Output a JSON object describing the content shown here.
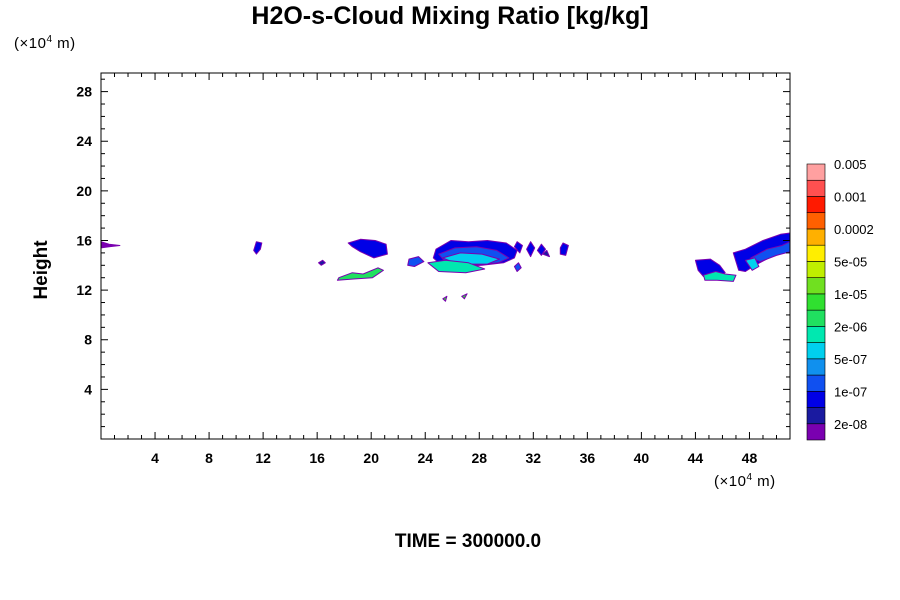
{
  "chart_data": {
    "type": "heatmap",
    "title": "H2O-s-Cloud Mixing Ratio [kg/kg]",
    "xlabel": "",
    "ylabel": "Height",
    "x_unit": "(×10",
    "x_unit_exp": "4",
    "x_unit_tail": " m)",
    "y_unit": "(×10",
    "y_unit_exp": "4",
    "y_unit_tail": " m)",
    "xlim": [
      0,
      51
    ],
    "ylim": [
      0,
      29.5
    ],
    "x_ticks": [
      "4",
      "8",
      "12",
      "16",
      "20",
      "24",
      "28",
      "32",
      "36",
      "40",
      "44",
      "48"
    ],
    "x_tick_values": [
      4,
      8,
      12,
      16,
      20,
      24,
      28,
      32,
      36,
      40,
      44,
      48
    ],
    "y_ticks": [
      "4",
      "8",
      "12",
      "16",
      "20",
      "24",
      "28"
    ],
    "y_tick_values": [
      4,
      8,
      12,
      16,
      20,
      24,
      28
    ],
    "grid": false,
    "legend_position": "right",
    "colorbar": {
      "colors": [
        "#7a00b0",
        "#1a1aa0",
        "#0000e6",
        "#1050f0",
        "#1090ee",
        "#00d0ee",
        "#00e8b0",
        "#20e060",
        "#30e030",
        "#70e020",
        "#c0ee00",
        "#ffee00",
        "#ffb000",
        "#ff6000",
        "#ff1a00",
        "#ff5050",
        "#ffa0a0"
      ],
      "labels": [
        "2e-08",
        "1e-07",
        "5e-07",
        "2e-06",
        "1e-05",
        "5e-05",
        "0.0002",
        "0.001",
        "0.005"
      ]
    },
    "cloud_regions": [
      {
        "x": [
          0.0,
          0.0,
          0.6,
          1.4,
          0.6
        ],
        "y": [
          15.4,
          15.9,
          15.7,
          15.6,
          15.5
        ],
        "level": 0
      },
      {
        "x": [
          11.3,
          11.5,
          11.9,
          11.8,
          11.5
        ],
        "y": [
          15.2,
          15.9,
          15.8,
          15.3,
          14.9
        ],
        "level": 2
      },
      {
        "x": [
          18.3,
          19.2,
          20.3,
          21.1,
          21.2,
          20.2,
          19.2,
          18.6
        ],
        "y": [
          15.8,
          16.1,
          16.0,
          15.7,
          14.9,
          14.6,
          15.1,
          15.5
        ],
        "level": 2
      },
      {
        "x": [
          16.1,
          16.4,
          16.6,
          16.3
        ],
        "y": [
          14.2,
          14.4,
          14.2,
          14.0
        ],
        "level": 1
      },
      {
        "x": [
          17.6,
          18.6,
          19.4,
          20.5,
          20.9,
          20.1,
          18.7,
          17.5
        ],
        "y": [
          13.0,
          13.4,
          13.3,
          13.8,
          13.6,
          13.0,
          12.9,
          12.8
        ],
        "level": 7
      },
      {
        "x": [
          22.8,
          23.5,
          23.9,
          23.2,
          22.7
        ],
        "y": [
          14.5,
          14.7,
          14.3,
          13.9,
          14.0
        ],
        "level": 3
      },
      {
        "x": [
          24.8,
          25.9,
          27.2,
          28.6,
          30.0,
          30.8,
          30.6,
          29.8,
          28.2,
          26.4,
          25.2,
          24.6
        ],
        "y": [
          15.3,
          16.0,
          15.9,
          16.0,
          15.8,
          15.2,
          14.6,
          14.2,
          14.0,
          13.9,
          14.0,
          14.6
        ],
        "level": 2
      },
      {
        "x": [
          25.0,
          26.2,
          27.8,
          29.3,
          30.2,
          29.4,
          27.6,
          25.6
        ],
        "y": [
          14.9,
          15.4,
          15.5,
          15.2,
          14.6,
          14.2,
          14.0,
          14.1
        ],
        "level": 3
      },
      {
        "x": [
          25.3,
          26.6,
          28.2,
          29.5,
          28.6,
          26.4
        ],
        "y": [
          14.6,
          15.0,
          14.9,
          14.5,
          14.1,
          14.1
        ],
        "level": 5
      },
      {
        "x": [
          24.2,
          25.5,
          27.2,
          28.4,
          27.0,
          25.0
        ],
        "y": [
          14.2,
          14.4,
          14.2,
          13.7,
          13.4,
          13.5
        ],
        "level": 6
      },
      {
        "x": [
          30.6,
          30.8,
          31.2,
          31.0
        ],
        "y": [
          15.5,
          15.9,
          15.6,
          15.0
        ],
        "level": 2
      },
      {
        "x": [
          31.5,
          31.8,
          32.1,
          31.8
        ],
        "y": [
          15.3,
          15.9,
          15.4,
          14.7
        ],
        "level": 2
      },
      {
        "x": [
          32.3,
          32.6,
          32.9,
          32.6
        ],
        "y": [
          15.2,
          15.7,
          15.3,
          14.8
        ],
        "level": 2
      },
      {
        "x": [
          30.6,
          30.9,
          31.1,
          30.8
        ],
        "y": [
          13.9,
          14.2,
          13.8,
          13.5
        ],
        "level": 3
      },
      {
        "x": [
          34.0,
          34.2,
          34.6,
          34.4,
          34.0
        ],
        "y": [
          15.4,
          15.8,
          15.6,
          14.8,
          14.9
        ],
        "level": 2
      },
      {
        "x": [
          32.7,
          33.0,
          33.2
        ],
        "y": [
          14.9,
          15.2,
          14.7
        ],
        "level": 1
      },
      {
        "x": [
          25.3,
          25.6,
          25.5
        ],
        "y": [
          11.3,
          11.5,
          11.1
        ],
        "level": 8
      },
      {
        "x": [
          26.7,
          27.1,
          26.9
        ],
        "y": [
          11.5,
          11.7,
          11.3
        ],
        "level": 8
      },
      {
        "x": [
          44.0,
          45.1,
          45.8,
          46.2,
          45.5,
          44.6,
          44.2
        ],
        "y": [
          14.4,
          14.5,
          14.0,
          13.4,
          13.0,
          13.1,
          13.6
        ],
        "level": 2
      },
      {
        "x": [
          44.6,
          45.5,
          46.2,
          47.0,
          46.8,
          45.6,
          44.7
        ],
        "y": [
          13.2,
          13.5,
          13.3,
          13.2,
          12.7,
          12.8,
          12.8
        ],
        "level": 6
      },
      {
        "x": [
          46.8,
          47.7,
          49.0,
          50.3,
          51.0,
          51.0,
          49.8,
          48.4,
          47.7,
          47.2
        ],
        "y": [
          15.0,
          15.3,
          16.0,
          16.5,
          16.6,
          15.4,
          14.8,
          14.0,
          13.5,
          13.6
        ],
        "level": 2
      },
      {
        "x": [
          48.1,
          49.3,
          50.4,
          51.0,
          51.0,
          50.0,
          48.8
        ],
        "y": [
          14.6,
          15.3,
          15.6,
          15.9,
          15.1,
          14.8,
          14.3
        ],
        "level": 3
      },
      {
        "x": [
          47.7,
          48.4,
          48.7,
          48.2
        ],
        "y": [
          14.4,
          14.6,
          13.9,
          13.6
        ],
        "level": 5
      }
    ],
    "time_label": "TIME = 300000.0"
  }
}
